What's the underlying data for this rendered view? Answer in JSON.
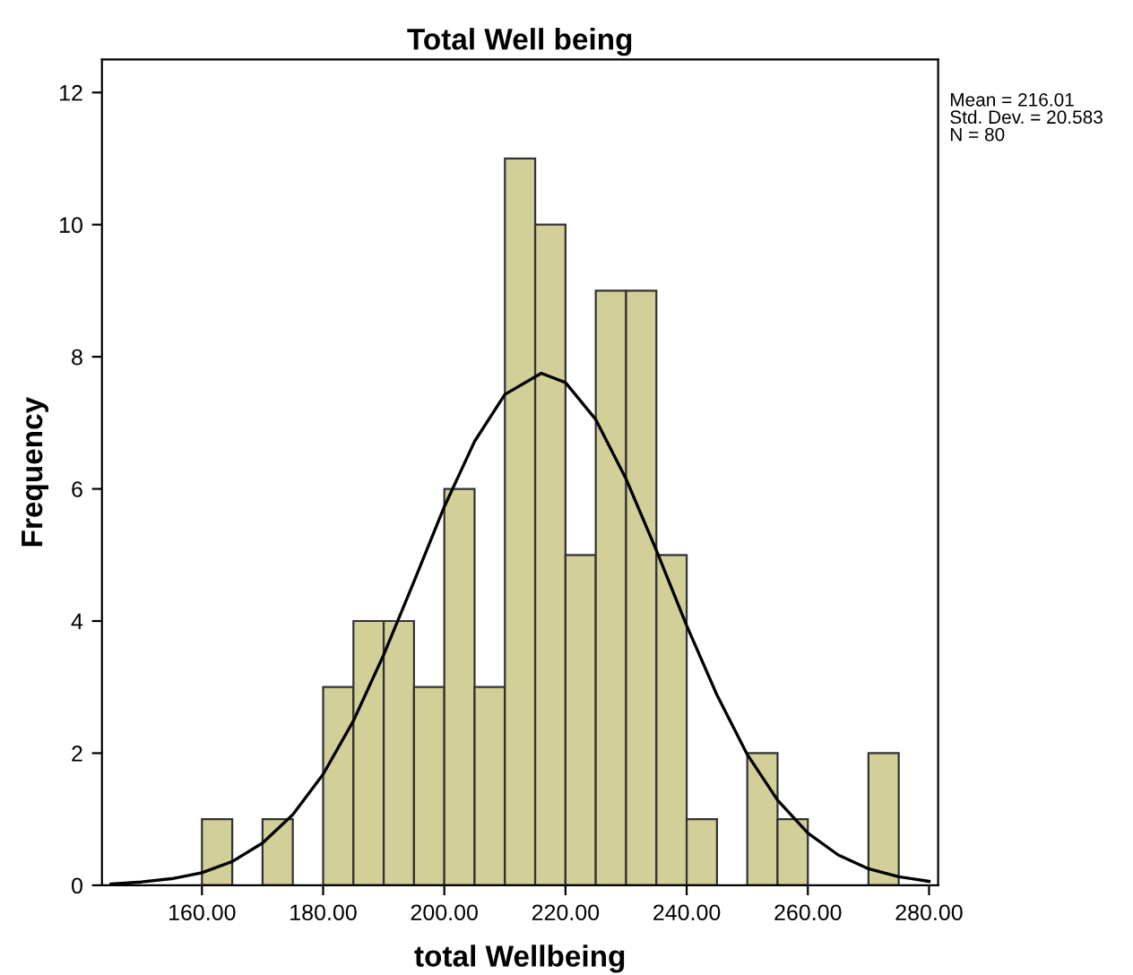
{
  "chart_data": {
    "type": "histogram",
    "title": "Total Well being",
    "xlabel": "total Wellbeing",
    "ylabel": "Frequency",
    "series": [
      {
        "color": "#d3cf98",
        "bins": [
          160,
          165,
          170,
          175,
          180,
          185,
          190,
          195,
          200,
          205,
          210,
          215,
          220,
          225,
          230,
          235,
          240,
          245,
          250,
          255,
          260,
          265,
          270,
          275
        ],
        "values": [
          1,
          0,
          1,
          0,
          3,
          4,
          4,
          3,
          6,
          3,
          11,
          10,
          5,
          9,
          9,
          5,
          1,
          0,
          2,
          1,
          0,
          0,
          2
        ]
      },
      {
        "type": "line",
        "color": "#000000",
        "x": [
          145,
          150,
          155,
          160,
          165,
          170,
          175,
          180,
          185,
          190,
          195,
          200,
          205,
          210,
          216.01,
          220,
          225,
          230,
          235,
          240,
          245,
          250,
          255,
          260,
          265,
          270,
          275,
          280
        ],
        "values": [
          0.02,
          0.05,
          0.1,
          0.19,
          0.36,
          0.64,
          1.07,
          1.68,
          2.49,
          3.49,
          4.6,
          5.73,
          6.72,
          7.43,
          7.75,
          7.61,
          7.05,
          6.15,
          5.07,
          3.93,
          2.88,
          1.98,
          1.29,
          0.79,
          0.46,
          0.25,
          0.13,
          0.06
        ]
      }
    ],
    "xlim": [
      143.5,
      281.5
    ],
    "ylim": [
      0,
      12.5
    ],
    "xticks": [
      {
        "value": 160,
        "label": "160.00"
      },
      {
        "value": 180,
        "label": "180.00"
      },
      {
        "value": 200,
        "label": "200.00"
      },
      {
        "value": 220,
        "label": "220.00"
      },
      {
        "value": 240,
        "label": "240.00"
      },
      {
        "value": 260,
        "label": "260.00"
      },
      {
        "value": 280,
        "label": "280.00"
      }
    ],
    "yticks": [
      0,
      2,
      4,
      6,
      8,
      10,
      12
    ],
    "annotations": [
      "Mean = 216.01\nStd. Dev. = 20.583\nN = 80"
    ],
    "grid": false
  }
}
